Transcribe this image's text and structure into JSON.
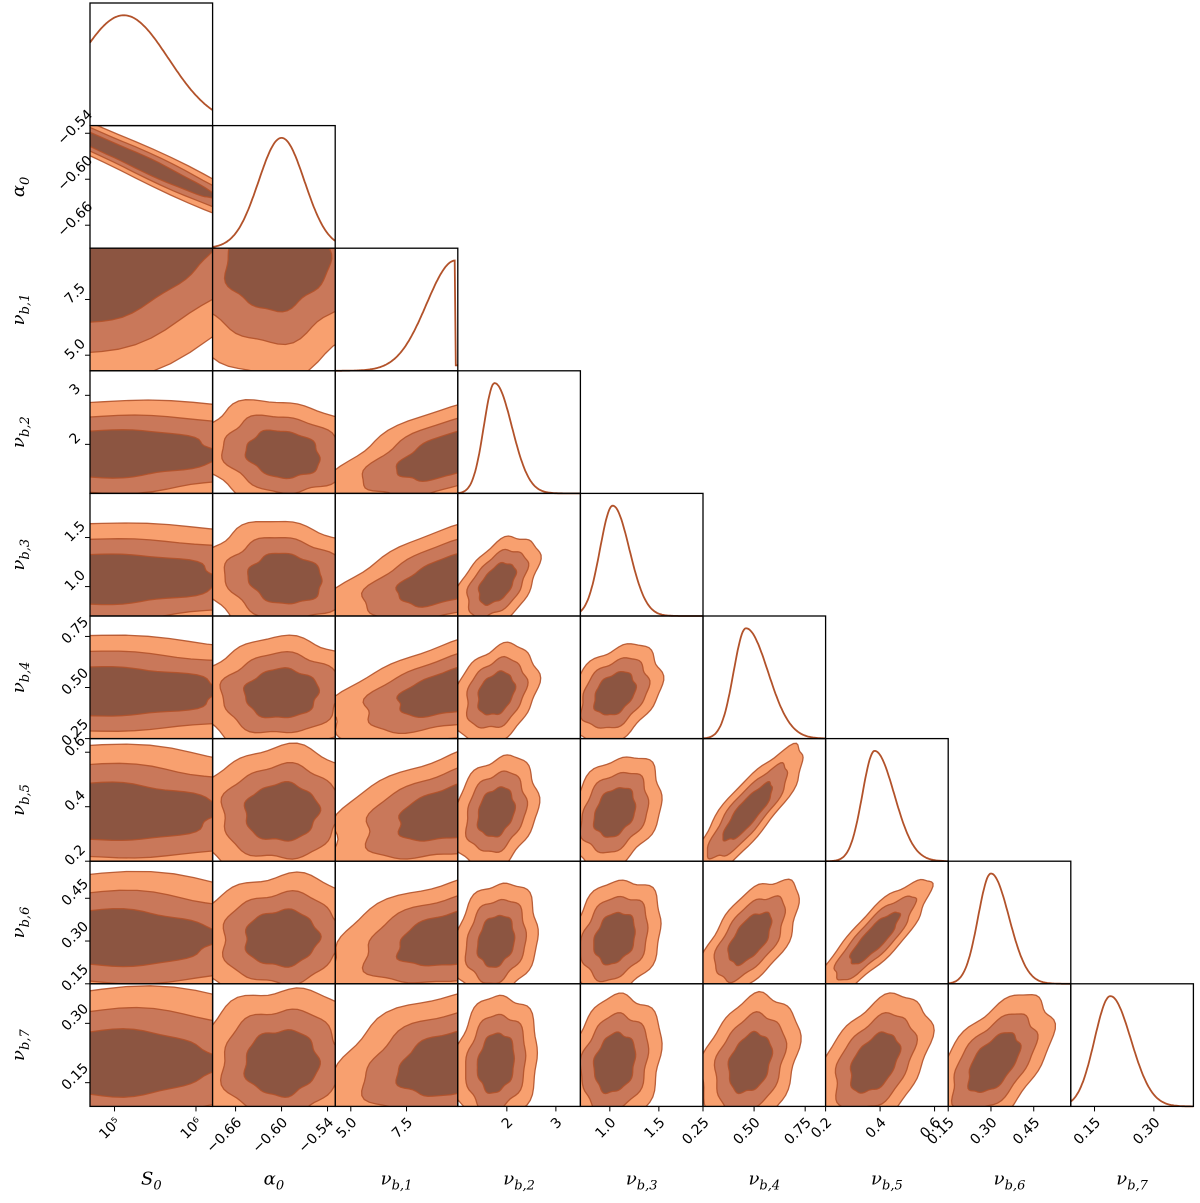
{
  "chart_data": {
    "type": "corner",
    "colors": {
      "outer": "#f8a06f",
      "middle": "#c9785a",
      "inner": "#8c5541",
      "line": "#b2522a"
    },
    "parameters": [
      {
        "key": "S0",
        "base": "S",
        "sub": "0",
        "scale": "log",
        "range": [
          50000,
          1600000
        ],
        "ticks": [
          {
            "v": 100000,
            "label": "10⁵"
          },
          {
            "v": 1000000,
            "label": "10⁶"
          }
        ],
        "peak": 130000,
        "width": 0.55,
        "skew": 0
      },
      {
        "key": "alpha0",
        "base": "α",
        "sub": "0",
        "scale": "linear",
        "range": [
          -0.69,
          -0.53
        ],
        "ticks": [
          {
            "v": -0.66,
            "label": "−0.66"
          },
          {
            "v": -0.6,
            "label": "−0.60"
          },
          {
            "v": -0.54,
            "label": "−0.54"
          }
        ],
        "peak": -0.6,
        "width": 0.03,
        "skew": 0
      },
      {
        "key": "nu_b1",
        "base": "ν",
        "sub": "b,1",
        "scale": "linear",
        "range": [
          4.3,
          9.8
        ],
        "ticks": [
          {
            "v": 5.0,
            "label": "5.0"
          },
          {
            "v": 7.5,
            "label": "7.5"
          }
        ],
        "peak": 9.7,
        "width": 1.3,
        "skew": 0
      },
      {
        "key": "nu_b2",
        "base": "ν",
        "sub": "b,2",
        "scale": "linear",
        "range": [
          1.0,
          3.5
        ],
        "ticks": [
          {
            "v": 2,
            "label": "2"
          },
          {
            "v": 3,
            "label": "3"
          }
        ],
        "peak": 1.75,
        "width": 0.22,
        "skew": 0.6
      },
      {
        "key": "nu_b3",
        "base": "ν",
        "sub": "b,3",
        "scale": "linear",
        "range": [
          0.7,
          1.95
        ],
        "ticks": [
          {
            "v": 1.0,
            "label": "1.0"
          },
          {
            "v": 1.5,
            "label": "1.5"
          }
        ],
        "peak": 1.03,
        "width": 0.13,
        "skew": 0.3
      },
      {
        "key": "nu_b4",
        "base": "ν",
        "sub": "b,4",
        "scale": "linear",
        "range": [
          0.25,
          0.85
        ],
        "ticks": [
          {
            "v": 0.25,
            "label": "0.25"
          },
          {
            "v": 0.5,
            "label": "0.50"
          },
          {
            "v": 0.75,
            "label": "0.75"
          }
        ],
        "peak": 0.46,
        "width": 0.06,
        "skew": 0.8
      },
      {
        "key": "nu_b5",
        "base": "ν",
        "sub": "b,5",
        "scale": "linear",
        "range": [
          0.2,
          0.65
        ],
        "ticks": [
          {
            "v": 0.2,
            "label": "0.2"
          },
          {
            "v": 0.4,
            "label": "0.4"
          },
          {
            "v": 0.6,
            "label": "0.6"
          }
        ],
        "peak": 0.38,
        "width": 0.045,
        "skew": 0.6
      },
      {
        "key": "nu_b6",
        "base": "ν",
        "sub": "b,6",
        "scale": "linear",
        "range": [
          0.15,
          0.58
        ],
        "ticks": [
          {
            "v": 0.15,
            "label": "0.15"
          },
          {
            "v": 0.3,
            "label": "0.30"
          },
          {
            "v": 0.45,
            "label": "0.45"
          }
        ],
        "peak": 0.3,
        "width": 0.045,
        "skew": 0.4
      },
      {
        "key": "nu_b7",
        "base": "ν",
        "sub": "b,7",
        "scale": "linear",
        "range": [
          0.09,
          0.4
        ],
        "ticks": [
          {
            "v": 0.15,
            "label": "0.15"
          },
          {
            "v": 0.3,
            "label": "0.30"
          }
        ],
        "peak": 0.19,
        "width": 0.04,
        "skew": 0.3
      }
    ],
    "joint": [
      {
        "x": 0,
        "y": 1,
        "cx": 180000,
        "cy": -0.575,
        "sx": 0.7,
        "sy": 0.035,
        "rho": -0.98
      },
      {
        "x": 0,
        "y": 2,
        "cx": 70000,
        "cy": 8.7,
        "sx": 0.9,
        "sy": 1.7,
        "rho": 0.55
      },
      {
        "x": 1,
        "y": 2,
        "cx": -0.605,
        "cy": 9.3,
        "sx": 0.045,
        "sy": 1.5,
        "rho": 0.1
      },
      {
        "x": 2,
        "y": 3,
        "cx": 9.5,
        "cy": 1.8,
        "sx": 1.6,
        "sy": 0.35,
        "rho": 0.6
      },
      {
        "x": 2,
        "y": 4,
        "cx": 9.5,
        "cy": 1.08,
        "sx": 1.6,
        "sy": 0.18,
        "rho": 0.55
      },
      {
        "x": 2,
        "y": 5,
        "cx": 9.5,
        "cy": 0.48,
        "sx": 1.6,
        "sy": 0.08,
        "rho": 0.5
      },
      {
        "x": 2,
        "y": 6,
        "cx": 9.5,
        "cy": 0.38,
        "sx": 1.6,
        "sy": 0.07,
        "rho": 0.45
      },
      {
        "x": 2,
        "y": 7,
        "cx": 9.5,
        "cy": 0.31,
        "sx": 1.6,
        "sy": 0.065,
        "rho": 0.4
      },
      {
        "x": 2,
        "y": 8,
        "cx": 9.5,
        "cy": 0.2,
        "sx": 1.6,
        "sy": 0.055,
        "rho": 0.35
      },
      {
        "x": 0,
        "y": 3,
        "cx": 70000,
        "cy": 1.82,
        "sx": 0.95,
        "sy": 0.32,
        "rho": 0.0
      },
      {
        "x": 0,
        "y": 4,
        "cx": 70000,
        "cy": 1.08,
        "sx": 0.95,
        "sy": 0.17,
        "rho": 0.0
      },
      {
        "x": 0,
        "y": 5,
        "cx": 70000,
        "cy": 0.48,
        "sx": 0.95,
        "sy": 0.08,
        "rho": 0.0
      },
      {
        "x": 0,
        "y": 6,
        "cx": 70000,
        "cy": 0.38,
        "sx": 0.95,
        "sy": 0.07,
        "rho": 0.0
      },
      {
        "x": 0,
        "y": 7,
        "cx": 70000,
        "cy": 0.31,
        "sx": 0.95,
        "sy": 0.065,
        "rho": 0.0
      },
      {
        "x": 0,
        "y": 8,
        "cx": 70000,
        "cy": 0.2,
        "sx": 0.95,
        "sy": 0.055,
        "rho": 0.0
      },
      {
        "x": 1,
        "y": 3,
        "cx": -0.598,
        "cy": 1.8,
        "sx": 0.032,
        "sy": 0.32,
        "rho": -0.15
      },
      {
        "x": 1,
        "y": 4,
        "cx": -0.595,
        "cy": 1.08,
        "sx": 0.032,
        "sy": 0.17,
        "rho": -0.1
      },
      {
        "x": 1,
        "y": 5,
        "cx": -0.6,
        "cy": 0.47,
        "sx": 0.032,
        "sy": 0.08,
        "rho": 0.05
      },
      {
        "x": 1,
        "y": 6,
        "cx": -0.6,
        "cy": 0.38,
        "sx": 0.032,
        "sy": 0.07,
        "rho": 0.05
      },
      {
        "x": 1,
        "y": 7,
        "cx": -0.6,
        "cy": 0.31,
        "sx": 0.032,
        "sy": 0.065,
        "rho": 0.05
      },
      {
        "x": 1,
        "y": 8,
        "cx": -0.6,
        "cy": 0.2,
        "sx": 0.032,
        "sy": 0.055,
        "rho": 0.05
      },
      {
        "x": 3,
        "y": 4,
        "cx": 1.8,
        "cy": 1.03,
        "sx": 0.25,
        "sy": 0.14,
        "rho": 0.5
      },
      {
        "x": 3,
        "y": 5,
        "cx": 1.78,
        "cy": 0.47,
        "sx": 0.25,
        "sy": 0.07,
        "rho": 0.3
      },
      {
        "x": 3,
        "y": 6,
        "cx": 1.78,
        "cy": 0.38,
        "sx": 0.25,
        "sy": 0.06,
        "rho": 0.25
      },
      {
        "x": 3,
        "y": 7,
        "cx": 1.78,
        "cy": 0.3,
        "sx": 0.25,
        "sy": 0.06,
        "rho": 0.2
      },
      {
        "x": 3,
        "y": 8,
        "cx": 1.78,
        "cy": 0.2,
        "sx": 0.25,
        "sy": 0.05,
        "rho": 0.15
      },
      {
        "x": 4,
        "y": 5,
        "cx": 1.05,
        "cy": 0.47,
        "sx": 0.14,
        "sy": 0.07,
        "rho": 0.35
      },
      {
        "x": 4,
        "y": 6,
        "cx": 1.05,
        "cy": 0.38,
        "sx": 0.14,
        "sy": 0.06,
        "rho": 0.3
      },
      {
        "x": 4,
        "y": 7,
        "cx": 1.05,
        "cy": 0.31,
        "sx": 0.14,
        "sy": 0.06,
        "rho": 0.25
      },
      {
        "x": 4,
        "y": 8,
        "cx": 1.05,
        "cy": 0.2,
        "sx": 0.14,
        "sy": 0.05,
        "rho": 0.2
      },
      {
        "x": 5,
        "y": 6,
        "cx": 0.47,
        "cy": 0.38,
        "sx": 0.08,
        "sy": 0.07,
        "rho": 0.85
      },
      {
        "x": 5,
        "y": 7,
        "cx": 0.48,
        "cy": 0.31,
        "sx": 0.07,
        "sy": 0.06,
        "rho": 0.6
      },
      {
        "x": 5,
        "y": 8,
        "cx": 0.48,
        "cy": 0.2,
        "sx": 0.07,
        "sy": 0.05,
        "rho": 0.3
      },
      {
        "x": 6,
        "y": 7,
        "cx": 0.38,
        "cy": 0.31,
        "sx": 0.06,
        "sy": 0.06,
        "rho": 0.85
      },
      {
        "x": 6,
        "y": 8,
        "cx": 0.38,
        "cy": 0.2,
        "sx": 0.06,
        "sy": 0.05,
        "rho": 0.45
      },
      {
        "x": 7,
        "y": 8,
        "cx": 0.31,
        "cy": 0.2,
        "sx": 0.06,
        "sy": 0.05,
        "rho": 0.55
      }
    ],
    "contour_levels": [
      0.68,
      0.95,
      0.997
    ],
    "grid": false
  }
}
